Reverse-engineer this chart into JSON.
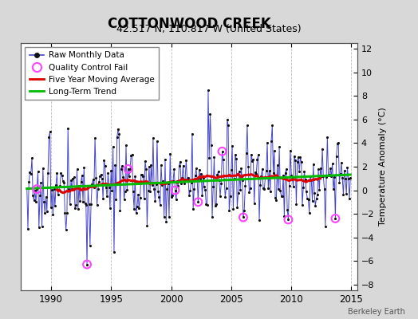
{
  "title": "COTTONWOOD CREEK",
  "subtitle": "42.517 N, 110.817 W (United States)",
  "ylabel": "Temperature Anomaly (°C)",
  "watermark": "Berkeley Earth",
  "xlim": [
    1987.5,
    2015.5
  ],
  "ylim": [
    -8.5,
    12.5
  ],
  "yticks": [
    -8,
    -6,
    -4,
    -2,
    0,
    2,
    4,
    6,
    8,
    10,
    12
  ],
  "xticks": [
    1990,
    1995,
    2000,
    2005,
    2010,
    2015
  ],
  "outer_bg": "#d8d8d8",
  "inner_bg": "#ffffff",
  "raw_color": "#4444cc",
  "dot_color": "#111111",
  "qc_color": "#ff44ff",
  "ma_color": "#dd0000",
  "trend_color": "#00bb00",
  "title_fontsize": 12,
  "subtitle_fontsize": 9
}
